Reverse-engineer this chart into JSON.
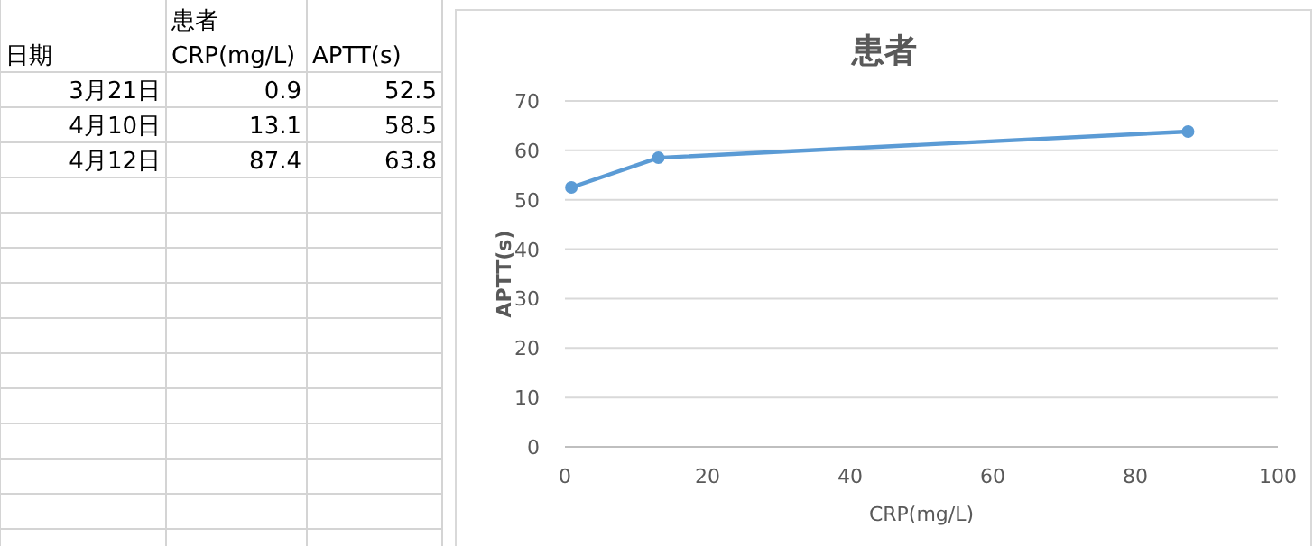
{
  "chart_data": [
    {
      "type": "other",
      "annotations": [
        "患者",
        "日期",
        "CRP(mg/L)",
        "APTT(s)",
        "3月21日",
        "0.9",
        "52.5",
        "4月10日",
        "13.1",
        "58.5",
        "4月12日",
        "87.4",
        "63.8"
      ]
    },
    {
      "type": "line",
      "title": "患者",
      "xlabel": "CRP(mg/L)",
      "ylabel": "APTT(s)",
      "series": [
        {
          "color": "#5b9bd5",
          "x": [
            0.9,
            13.1,
            87.4
          ],
          "values": [
            52.5,
            58.5,
            63.8
          ]
        }
      ],
      "xlim": [
        0,
        100
      ],
      "xticks": [
        0,
        20,
        40,
        60,
        80,
        100
      ],
      "ylim": [
        0,
        70
      ],
      "yticks": [
        0,
        10,
        20,
        30,
        40,
        50,
        60,
        70
      ],
      "grid": "y",
      "marker": "circle",
      "line_style": "solid"
    }
  ]
}
